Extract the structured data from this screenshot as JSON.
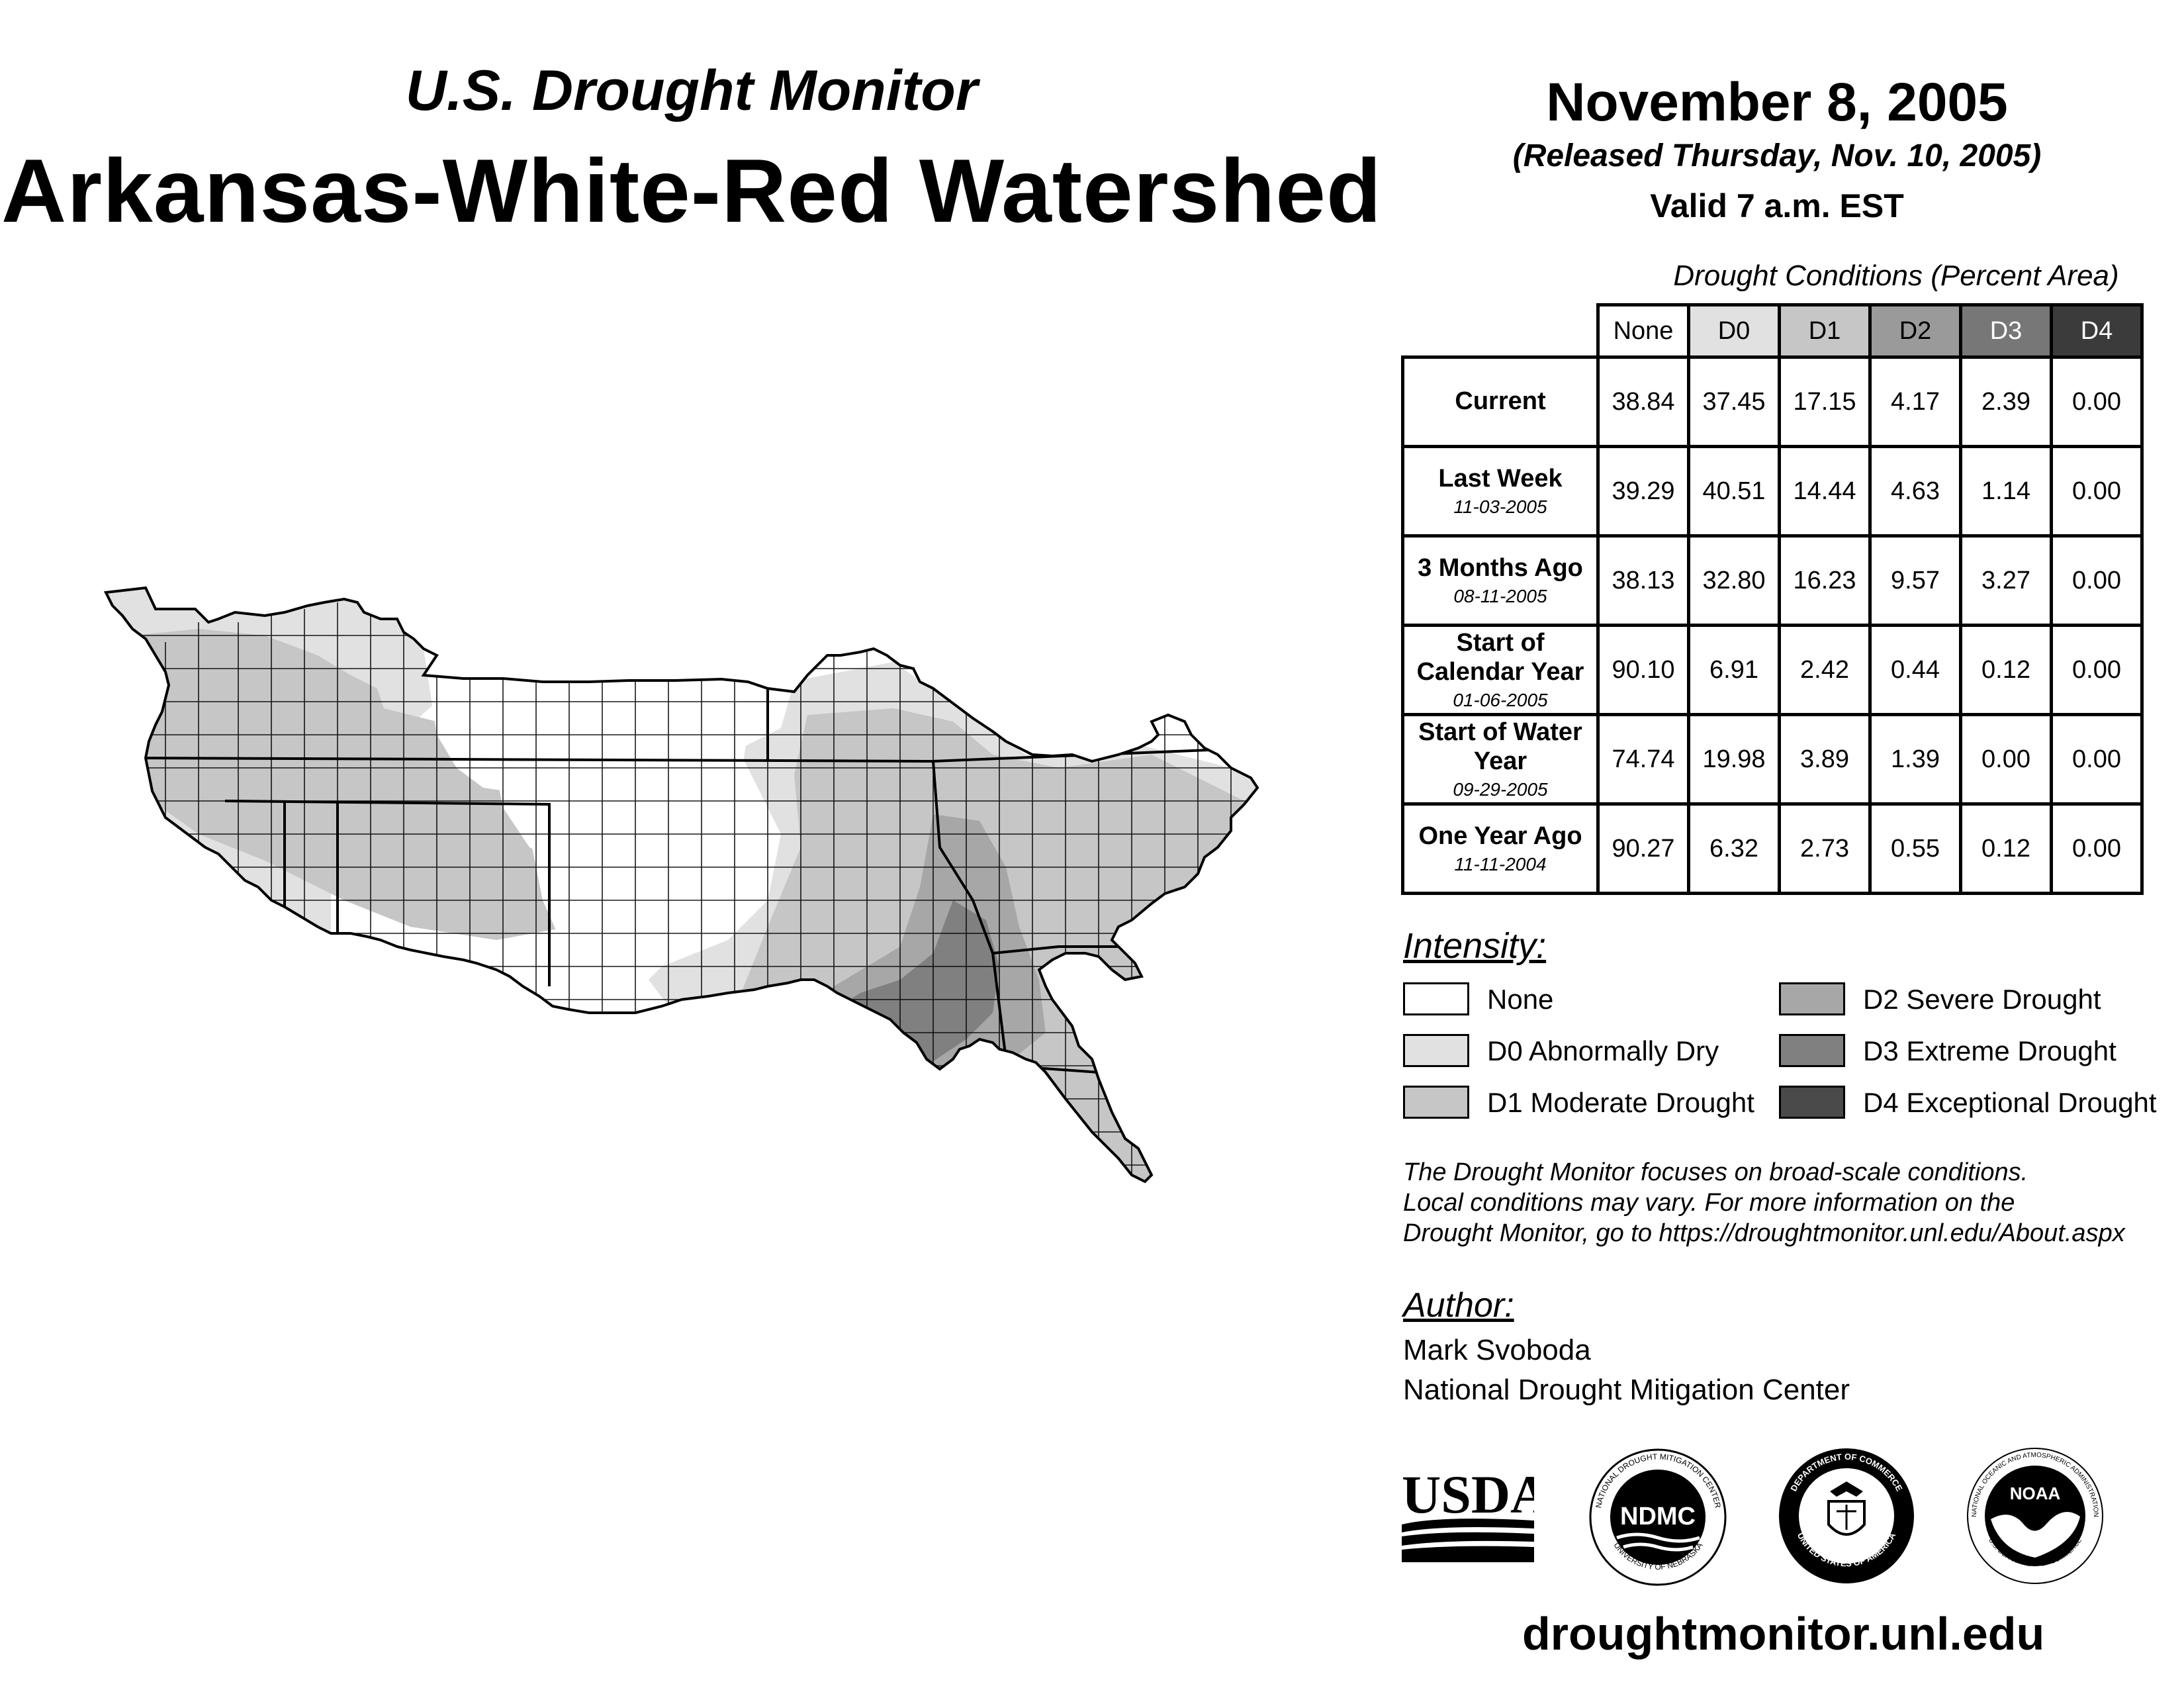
{
  "header": {
    "subtitle": "U.S. Drought Monitor",
    "title": "Arkansas-White-Red Watershed",
    "date": "November 8, 2005",
    "released": "(Released Thursday, Nov. 10, 2005)",
    "valid": "Valid 7 a.m. EST"
  },
  "table": {
    "caption": "Drought Conditions (Percent Area)",
    "columns": [
      "None",
      "D0",
      "D1",
      "D2",
      "D3",
      "D4"
    ],
    "rows": [
      {
        "label": "Current",
        "date": "",
        "values": [
          "38.84",
          "37.45",
          "17.15",
          "4.17",
          "2.39",
          "0.00"
        ]
      },
      {
        "label": "Last Week",
        "date": "11-03-2005",
        "values": [
          "39.29",
          "40.51",
          "14.44",
          "4.63",
          "1.14",
          "0.00"
        ]
      },
      {
        "label": "3 Months Ago",
        "date": "08-11-2005",
        "values": [
          "38.13",
          "32.80",
          "16.23",
          "9.57",
          "3.27",
          "0.00"
        ]
      },
      {
        "label": "Start of Calendar Year",
        "date": "01-06-2005",
        "values": [
          "90.10",
          "6.91",
          "2.42",
          "0.44",
          "0.12",
          "0.00"
        ]
      },
      {
        "label": "Start of Water Year",
        "date": "09-29-2005",
        "values": [
          "74.74",
          "19.98",
          "3.89",
          "1.39",
          "0.00",
          "0.00"
        ]
      },
      {
        "label": "One Year Ago",
        "date": "11-11-2004",
        "values": [
          "90.27",
          "6.32",
          "2.73",
          "0.55",
          "0.12",
          "0.00"
        ]
      }
    ]
  },
  "legend": {
    "title": "Intensity:",
    "items": [
      {
        "label": "None",
        "color": "#ffffff"
      },
      {
        "label": "D0 Abnormally Dry",
        "color": "#e1e1e1"
      },
      {
        "label": "D1 Moderate Drought",
        "color": "#c6c6c6"
      },
      {
        "label": "D2 Severe Drought",
        "color": "#a7a7a7"
      },
      {
        "label": "D3 Extreme Drought",
        "color": "#808080"
      },
      {
        "label": "D4 Exceptional Drought",
        "color": "#4a4a4a"
      }
    ]
  },
  "disclaimer": {
    "line1": "The Drought Monitor focuses on broad-scale conditions.",
    "line2": "Local conditions may vary. For more information on the",
    "line3": "Drought Monitor, go to https://droughtmonitor.unl.edu/About.aspx"
  },
  "author": {
    "title": "Author:",
    "name": "Mark Svoboda",
    "org": "National Drought Mitigation Center"
  },
  "logos": {
    "usda": "USDA",
    "ndmc_abbr": "NDMC",
    "ndmc_ring": "NATIONAL DROUGHT MITIGATION CENTER",
    "ndmc_ring_bottom": "UNIVERSITY OF NEBRASKA",
    "doc_ring_top": "DEPARTMENT OF COMMERCE",
    "doc_ring_bottom": "UNITED STATES OF AMERICA",
    "noaa_abbr": "NOAA",
    "noaa_ring_top": "NATIONAL OCEANIC AND ATMOSPHERIC ADMINISTRATION",
    "noaa_ring_bottom": "U.S. DEPARTMENT OF COMMERCE"
  },
  "footer": {
    "url": "droughtmonitor.unl.edu"
  }
}
